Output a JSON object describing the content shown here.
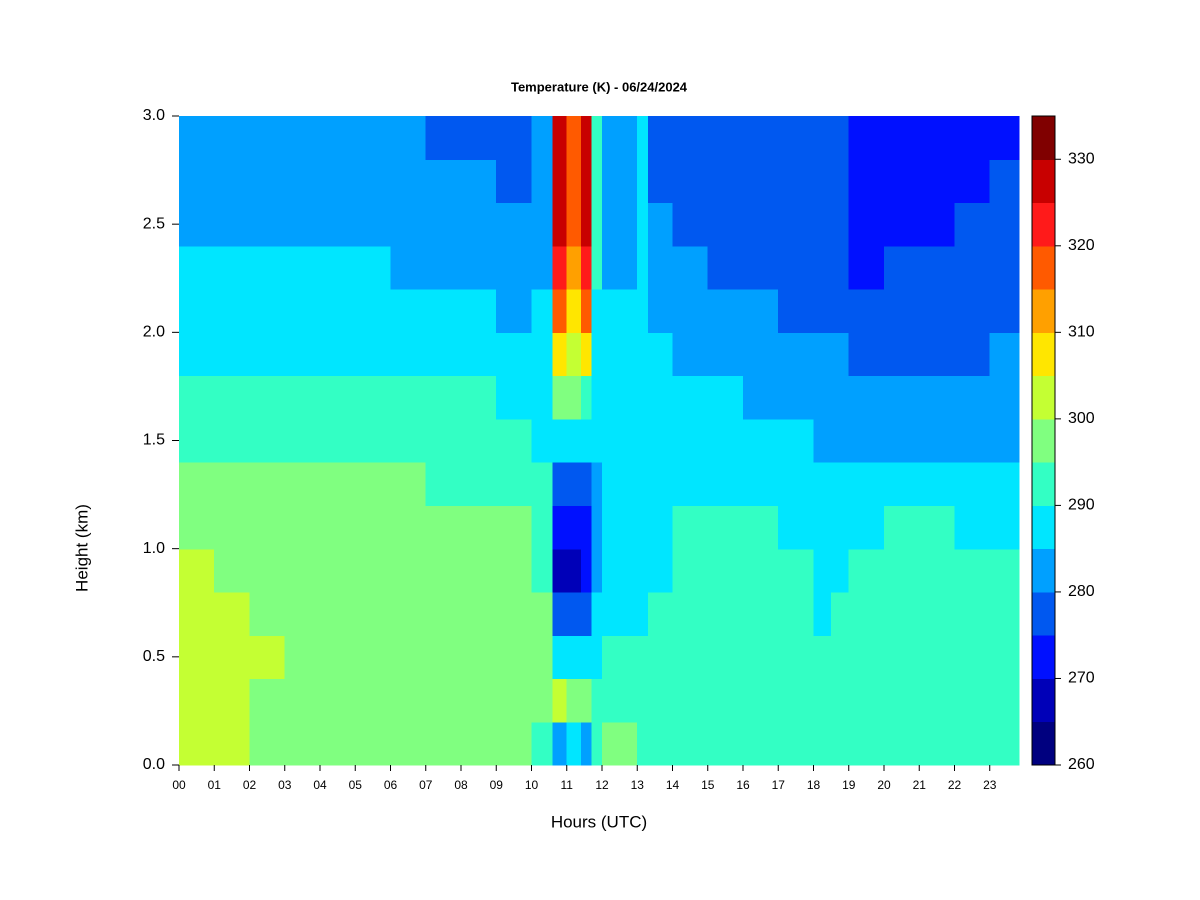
{
  "chart_data": {
    "type": "heatmap",
    "title": "Temperature (K) - 06/24/2024",
    "x_label": "Hours (UTC)",
    "y_label": "Height (km)",
    "xlim": [
      0,
      23.83
    ],
    "ylim": [
      0,
      3
    ],
    "xticks": [
      {
        "value": 0,
        "label": "00"
      },
      {
        "value": 1,
        "label": "01"
      },
      {
        "value": 2,
        "label": "02"
      },
      {
        "value": 3,
        "label": "03"
      },
      {
        "value": 4,
        "label": "04"
      },
      {
        "value": 5,
        "label": "05"
      },
      {
        "value": 6,
        "label": "06"
      },
      {
        "value": 7,
        "label": "07"
      },
      {
        "value": 8,
        "label": "08"
      },
      {
        "value": 9,
        "label": "09"
      },
      {
        "value": 10,
        "label": "10"
      },
      {
        "value": 11,
        "label": "11"
      },
      {
        "value": 12,
        "label": "12"
      },
      {
        "value": 13,
        "label": "13"
      },
      {
        "value": 14,
        "label": "14"
      },
      {
        "value": 15,
        "label": "15"
      },
      {
        "value": 16,
        "label": "16"
      },
      {
        "value": 17,
        "label": "17"
      },
      {
        "value": 18,
        "label": "18"
      },
      {
        "value": 19,
        "label": "19"
      },
      {
        "value": 20,
        "label": "20"
      },
      {
        "value": 21,
        "label": "21"
      },
      {
        "value": 22,
        "label": "22"
      },
      {
        "value": 23,
        "label": "23"
      }
    ],
    "yticks": [
      {
        "value": 0,
        "label": "0.0"
      },
      0.5,
      {
        "value": 1,
        "label": "1.0"
      },
      1.5,
      {
        "value": 2,
        "label": "2.0"
      },
      2.5,
      {
        "value": 3,
        "label": "3.0"
      }
    ],
    "x_edges": [
      0,
      1,
      2,
      3,
      4,
      5,
      6,
      7,
      8,
      9,
      10,
      10.6,
      11,
      11.4,
      11.7,
      12,
      13,
      13.3,
      14,
      15,
      16,
      17,
      18,
      18.5,
      19,
      20,
      21,
      22,
      23,
      23.83
    ],
    "y_edges": [
      0,
      0.2,
      0.4,
      0.6,
      0.8,
      1.0,
      1.2,
      1.4,
      1.6,
      1.8,
      2.0,
      2.2,
      2.4,
      2.6,
      2.8,
      3.0
    ],
    "levels": [
      260,
      265,
      270,
      275,
      280,
      285,
      290,
      295,
      300,
      305,
      310,
      315,
      320,
      325,
      330,
      335
    ],
    "colors": [
      "#00007f",
      "#0000b8",
      "#0010ff",
      "#0058f0",
      "#00a0ff",
      "#00e6ff",
      "#33ffc4",
      "#80ff80",
      "#c4ff33",
      "#ffe600",
      "#ffa000",
      "#ff5a00",
      "#ff1a1a",
      "#c80000",
      "#800000"
    ],
    "zticks": [
      260,
      270,
      280,
      290,
      300,
      310,
      320,
      330
    ],
    "values": [
      [
        302,
        302,
        302,
        302,
        302,
        297,
        297,
        292,
        292,
        287,
        287,
        287,
        282,
        282,
        282
      ],
      [
        302,
        302,
        302,
        302,
        297,
        297,
        297,
        292,
        292,
        287,
        287,
        287,
        282,
        282,
        282
      ],
      [
        297,
        297,
        302,
        297,
        297,
        297,
        297,
        292,
        292,
        287,
        287,
        287,
        282,
        282,
        282
      ],
      [
        297,
        297,
        297,
        297,
        297,
        297,
        297,
        292,
        292,
        287,
        287,
        287,
        282,
        282,
        282
      ],
      [
        297,
        297,
        297,
        297,
        297,
        297,
        297,
        292,
        292,
        287,
        287,
        287,
        282,
        282,
        282
      ],
      [
        297,
        297,
        297,
        297,
        297,
        297,
        297,
        292,
        292,
        287,
        287,
        287,
        282,
        282,
        282
      ],
      [
        297,
        297,
        297,
        297,
        297,
        297,
        297,
        292,
        292,
        287,
        287,
        282,
        282,
        282,
        282
      ],
      [
        297,
        297,
        297,
        297,
        297,
        297,
        292,
        292,
        292,
        287,
        287,
        282,
        282,
        282,
        277
      ],
      [
        297,
        297,
        297,
        297,
        297,
        297,
        292,
        292,
        292,
        287,
        287,
        282,
        282,
        282,
        277
      ],
      [
        297,
        297,
        297,
        297,
        297,
        297,
        292,
        292,
        287,
        287,
        282,
        282,
        282,
        277,
        277
      ],
      [
        292,
        297,
        297,
        297,
        292,
        292,
        292,
        287,
        287,
        287,
        287,
        282,
        282,
        282,
        282
      ],
      [
        282,
        302,
        287,
        277,
        267,
        272,
        277,
        287,
        297,
        307,
        317,
        322,
        327,
        327,
        327
      ],
      [
        287,
        297,
        287,
        277,
        267,
        272,
        277,
        287,
        297,
        302,
        307,
        312,
        317,
        317,
        317
      ],
      [
        282,
        297,
        287,
        277,
        272,
        272,
        277,
        287,
        292,
        307,
        317,
        322,
        327,
        327,
        327
      ],
      [
        292,
        292,
        287,
        287,
        282,
        282,
        282,
        287,
        287,
        287,
        287,
        292,
        292,
        292,
        292
      ],
      [
        297,
        292,
        292,
        287,
        287,
        287,
        287,
        287,
        287,
        287,
        287,
        282,
        282,
        282,
        282
      ],
      [
        292,
        292,
        292,
        287,
        287,
        287,
        287,
        287,
        287,
        287,
        287,
        287,
        287,
        287,
        287
      ],
      [
        292,
        292,
        292,
        292,
        287,
        287,
        287,
        287,
        287,
        287,
        282,
        282,
        282,
        277,
        277
      ],
      [
        292,
        292,
        292,
        292,
        292,
        292,
        287,
        287,
        287,
        282,
        282,
        282,
        277,
        277,
        277
      ],
      [
        292,
        292,
        292,
        292,
        292,
        292,
        287,
        287,
        287,
        282,
        282,
        277,
        277,
        277,
        277
      ],
      [
        292,
        292,
        292,
        292,
        292,
        292,
        287,
        287,
        282,
        282,
        282,
        277,
        277,
        277,
        277
      ],
      [
        292,
        292,
        292,
        292,
        292,
        287,
        287,
        287,
        282,
        282,
        277,
        277,
        277,
        277,
        277
      ],
      [
        292,
        292,
        292,
        287,
        287,
        287,
        287,
        282,
        282,
        282,
        277,
        277,
        277,
        277,
        277
      ],
      [
        292,
        292,
        292,
        292,
        287,
        287,
        287,
        282,
        282,
        282,
        277,
        277,
        277,
        277,
        277
      ],
      [
        292,
        292,
        292,
        292,
        292,
        287,
        287,
        282,
        282,
        277,
        277,
        272,
        272,
        272,
        272
      ],
      [
        292,
        292,
        292,
        292,
        292,
        292,
        287,
        282,
        282,
        277,
        277,
        277,
        272,
        272,
        272
      ],
      [
        292,
        292,
        292,
        292,
        292,
        292,
        287,
        282,
        282,
        277,
        277,
        277,
        272,
        272,
        272
      ],
      [
        292,
        292,
        292,
        292,
        292,
        287,
        287,
        282,
        282,
        277,
        277,
        277,
        277,
        272,
        272
      ],
      [
        292,
        292,
        292,
        292,
        292,
        287,
        287,
        282,
        282,
        282,
        277,
        277,
        277,
        277,
        272
      ]
    ]
  }
}
